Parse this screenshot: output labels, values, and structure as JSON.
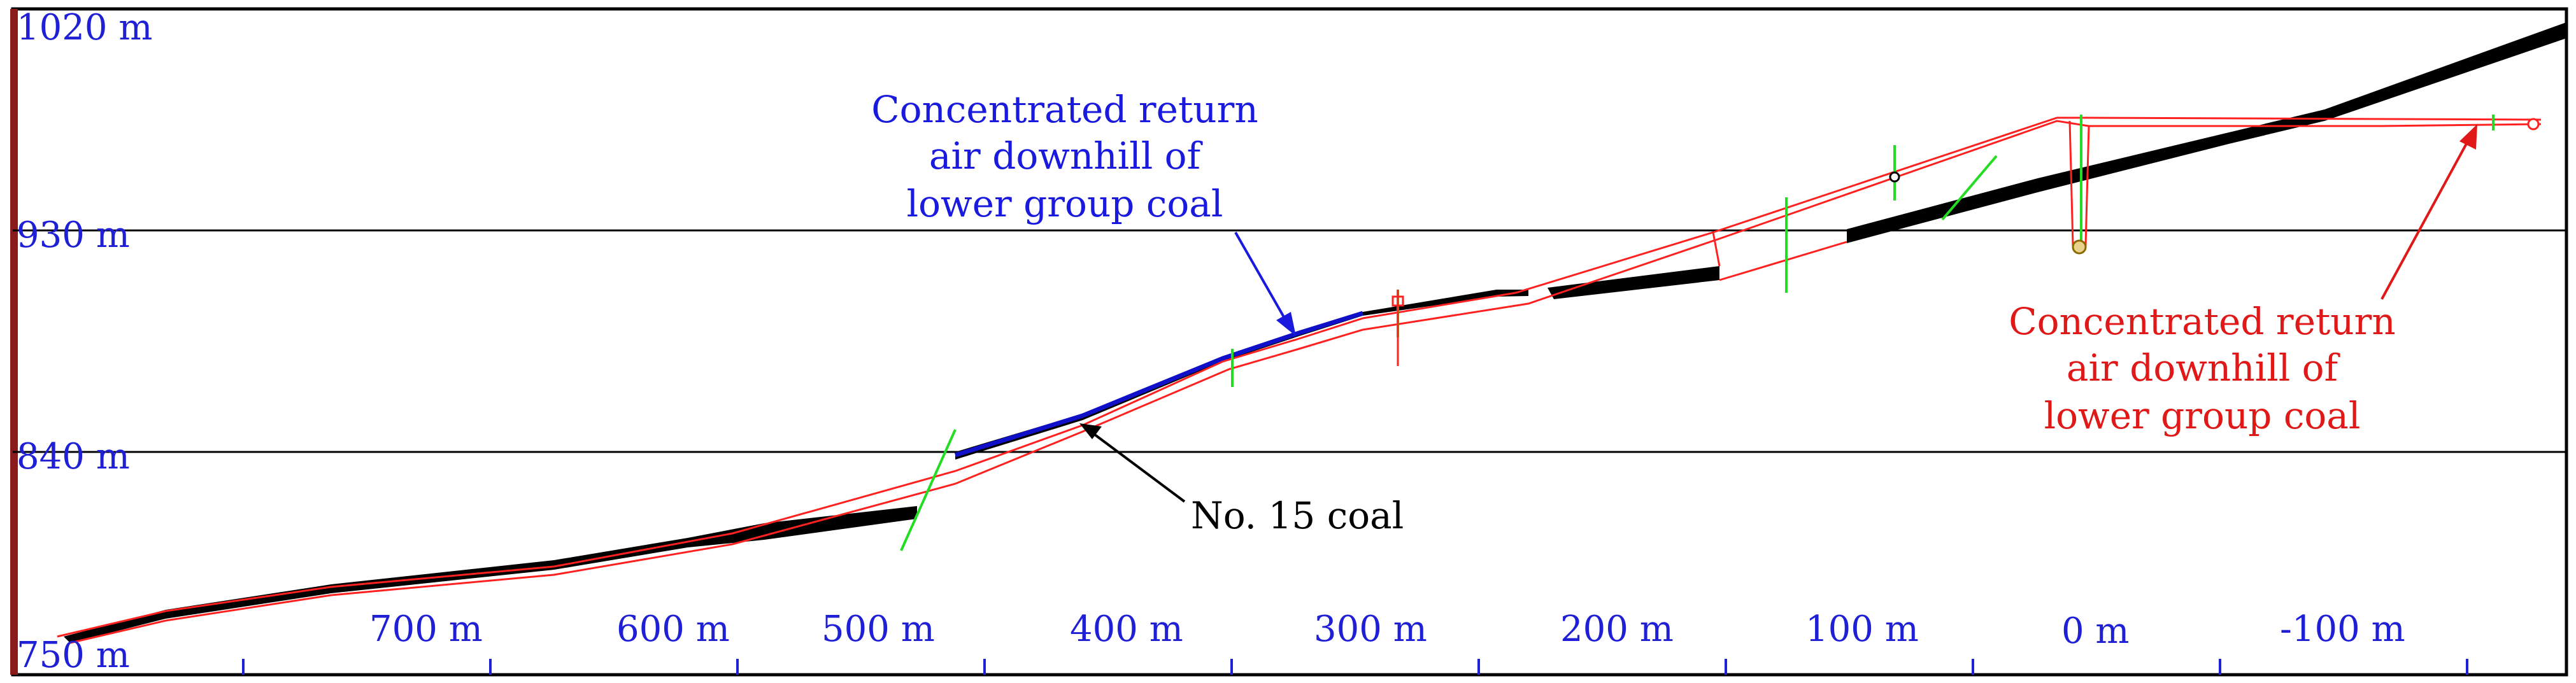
{
  "elevation_labels": [
    "1020 m",
    "930 m",
    "840 m",
    "750 m"
  ],
  "distance_labels": [
    "700 m",
    "600 m",
    "500 m",
    "400 m",
    "300 m",
    "200 m",
    "100 m",
    "0 m",
    "-100 m"
  ],
  "annotations": {
    "blue_return_air": [
      "Concentrated return",
      "air downhill of",
      "lower group coal"
    ],
    "red_return_air": [
      "Concentrated return",
      "air downhill of",
      "lower group coal"
    ],
    "coal_seam": "No. 15 coal"
  },
  "colors": {
    "frame": "#000000",
    "left_edge": "#8b1a1a",
    "axis_text": "#1f1fd6",
    "gridline": "#000000",
    "coal_seam": "#000000",
    "roadway": "#ff2020",
    "blue_roadway": "#1010c8",
    "fault": "#22dd22",
    "red_annotation": "#e01818",
    "blue_annotation": "#1a1adf"
  }
}
